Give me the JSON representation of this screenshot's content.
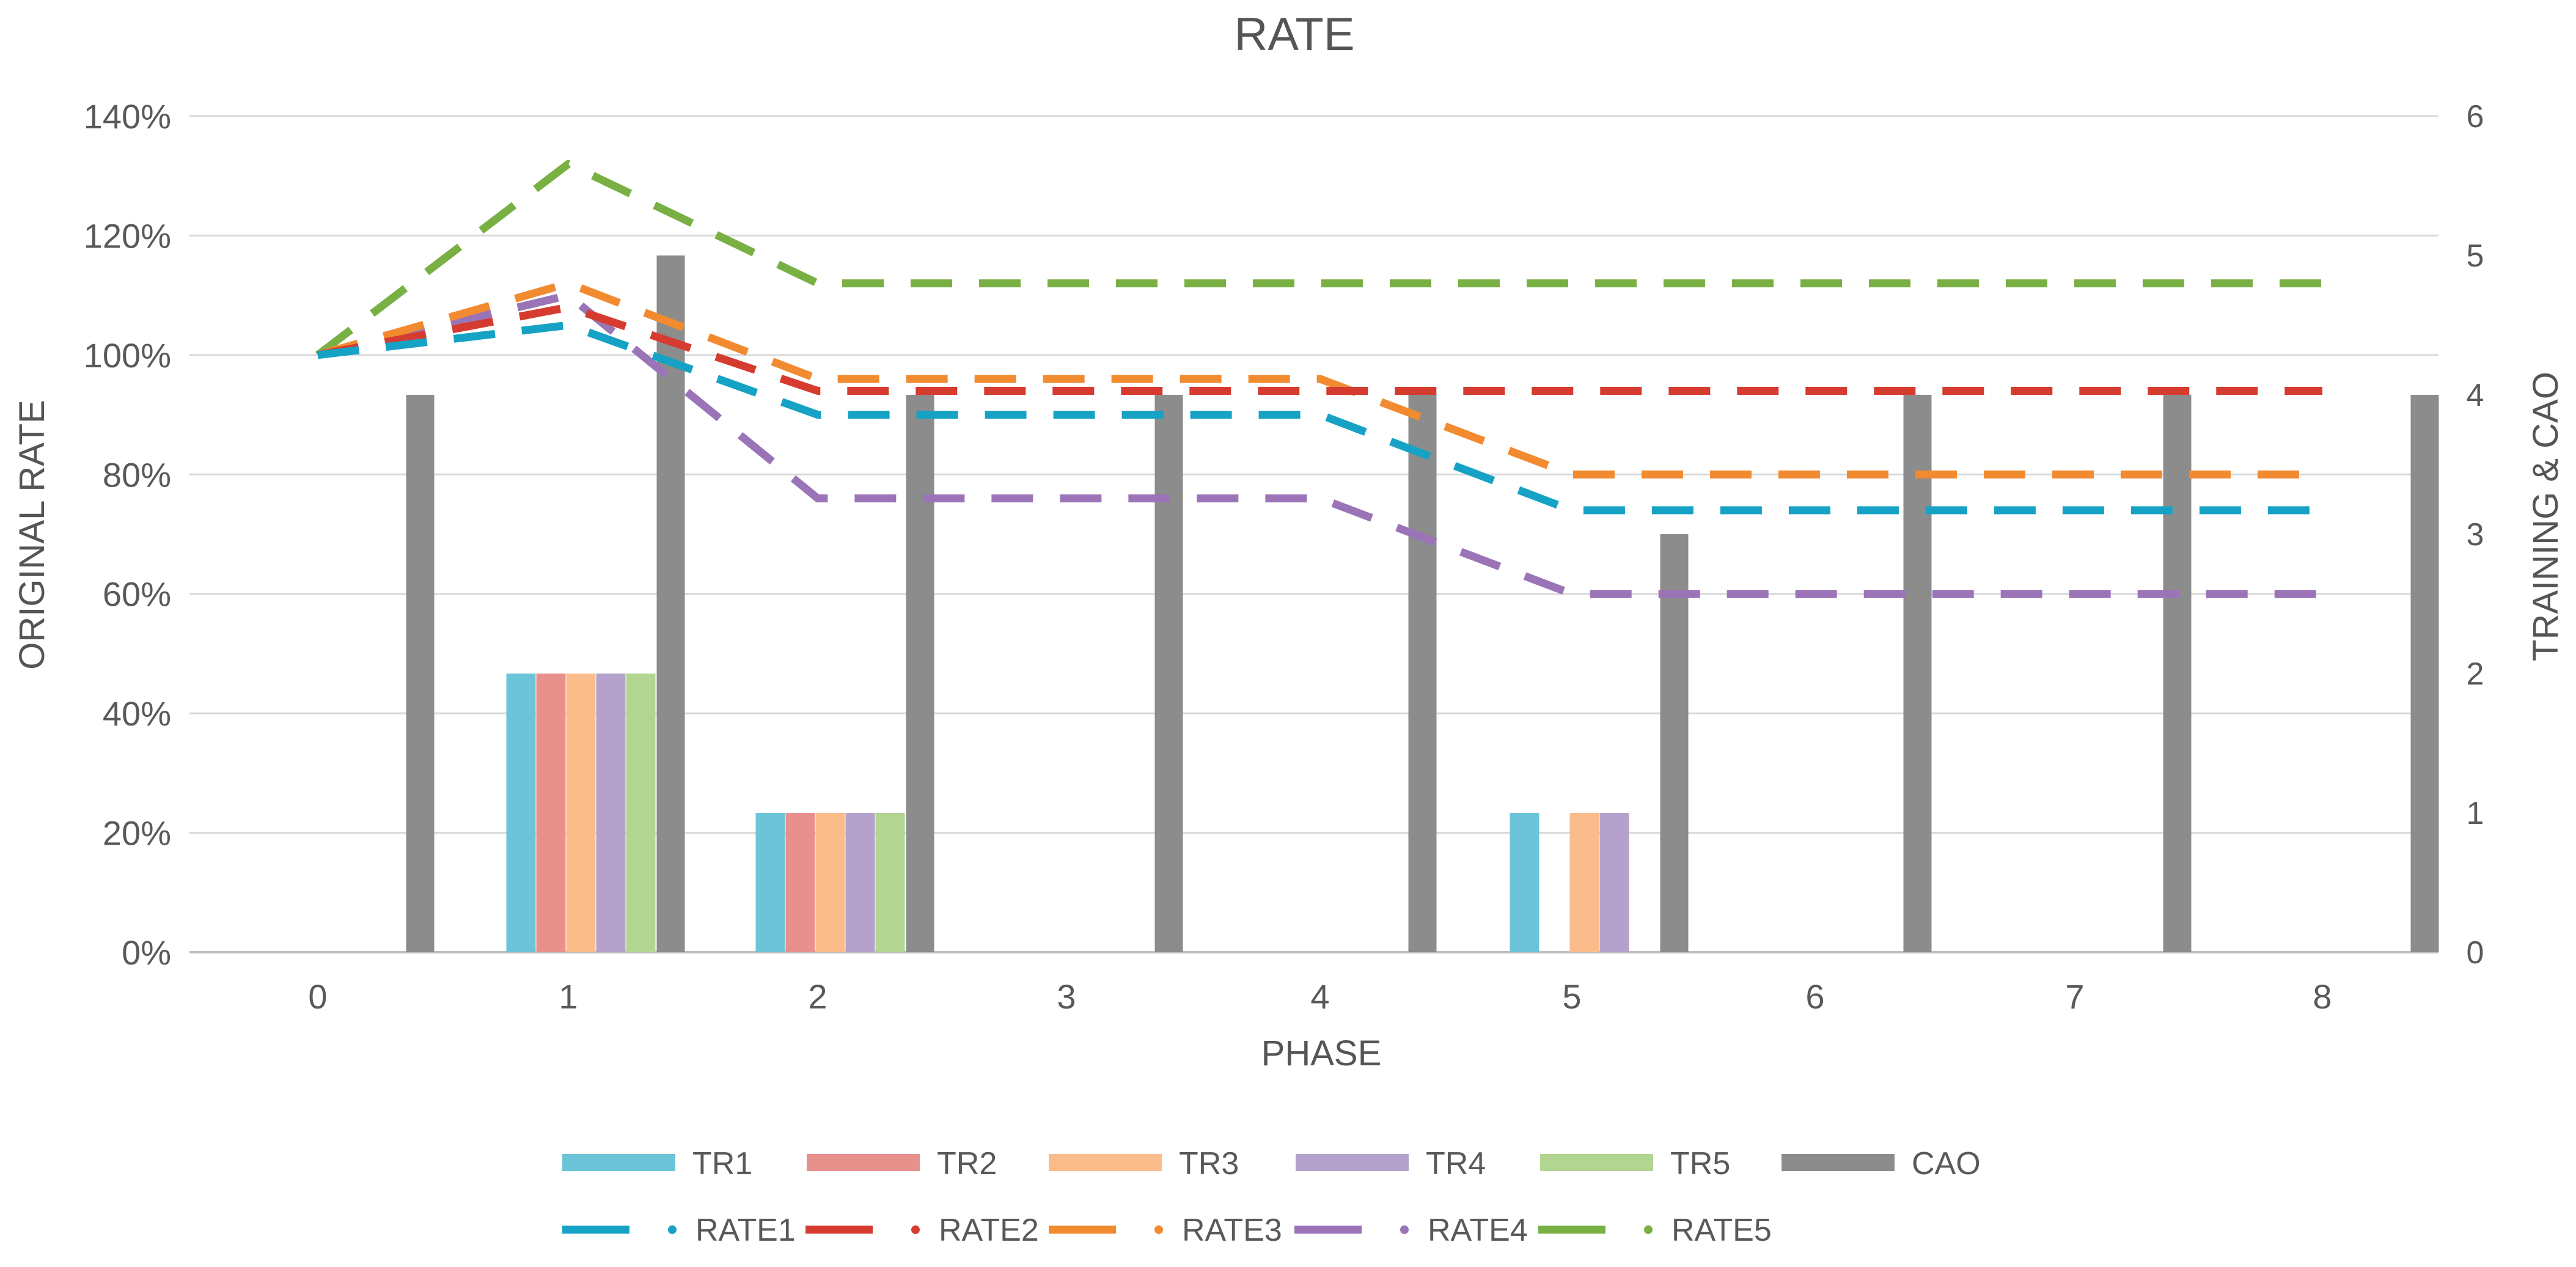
{
  "chart_data": {
    "type": "bar+line",
    "title": "RATE",
    "xlabel": "PHASE",
    "ylabel_left": "ORIGINAL RATE",
    "ylabel_right": "TRAINING & CAO",
    "categories": [
      "0",
      "1",
      "2",
      "3",
      "4",
      "5",
      "6",
      "7",
      "8"
    ],
    "ylim_left": [
      0,
      140
    ],
    "ylim_right": [
      0,
      6
    ],
    "left_ticks": [
      "0%",
      "20%",
      "40%",
      "60%",
      "80%",
      "100%",
      "120%",
      "140%"
    ],
    "right_ticks": [
      "0",
      "1",
      "2",
      "3",
      "4",
      "5",
      "6"
    ],
    "grid": true,
    "legend_position": "bottom",
    "bar_series": [
      {
        "name": "TR1",
        "color": "#6cc4d8",
        "values": [
          0,
          2,
          1,
          0,
          0,
          1,
          0,
          0,
          0
        ]
      },
      {
        "name": "TR2",
        "color": "#e8918c",
        "values": [
          0,
          2,
          1,
          0,
          0,
          0,
          0,
          0,
          0
        ]
      },
      {
        "name": "TR3",
        "color": "#fbbc8c",
        "values": [
          0,
          2,
          1,
          0,
          0,
          1,
          0,
          0,
          0
        ]
      },
      {
        "name": "TR4",
        "color": "#b4a2cc",
        "values": [
          0,
          2,
          1,
          0,
          0,
          1,
          0,
          0,
          0
        ]
      },
      {
        "name": "TR5",
        "color": "#b2d691",
        "values": [
          0,
          2,
          1,
          0,
          0,
          0,
          0,
          0,
          0
        ]
      },
      {
        "name": "CAO",
        "color": "#8c8c8c",
        "values": [
          4,
          5,
          4,
          4,
          4,
          3,
          4,
          4,
          4
        ]
      }
    ],
    "line_series": [
      {
        "name": "RATE1",
        "color": "#16a2c4",
        "values": [
          100,
          105,
          90,
          90,
          90,
          74,
          74,
          74,
          74
        ]
      },
      {
        "name": "RATE2",
        "color": "#d63b2f",
        "values": [
          100,
          108,
          94,
          94,
          94,
          94,
          94,
          94,
          94
        ]
      },
      {
        "name": "RATE3",
        "color": "#f28a30",
        "values": [
          100,
          112,
          96,
          96,
          96,
          80,
          80,
          80,
          80
        ]
      },
      {
        "name": "RATE4",
        "color": "#9b74b8",
        "values": [
          100,
          110,
          76,
          76,
          76,
          60,
          60,
          60,
          60
        ]
      },
      {
        "name": "RATE5",
        "color": "#78b043",
        "values": [
          100,
          132,
          112,
          112,
          112,
          112,
          112,
          112,
          112
        ]
      }
    ]
  }
}
